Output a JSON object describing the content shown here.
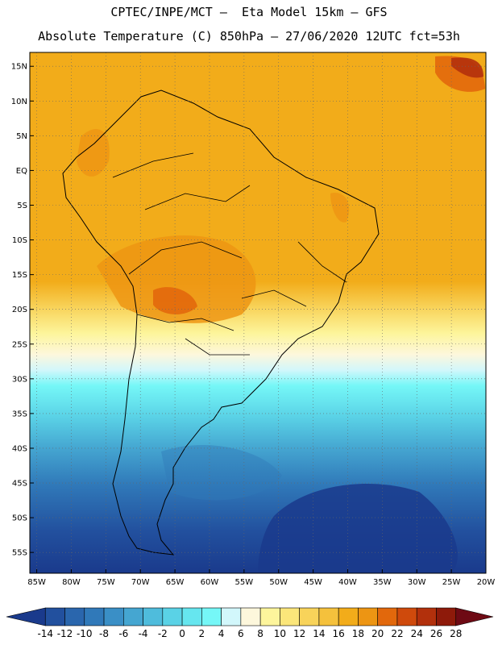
{
  "header": {
    "line1": "CPTEC/INPE/MCT –  Eta Model 15km – GFS",
    "line2": "Absolute Temperature (C) 850hPa – 27/06/2020 12UTC fct=53h"
  },
  "map": {
    "lat_range": [
      -58,
      17
    ],
    "lon_range": [
      -86,
      -20
    ],
    "lat_labels": [
      "15N",
      "10N",
      "5N",
      "EQ",
      "5S",
      "10S",
      "15S",
      "20S",
      "25S",
      "30S",
      "35S",
      "40S",
      "45S",
      "50S",
      "55S"
    ],
    "lat_values": [
      15,
      10,
      5,
      0,
      -5,
      -10,
      -15,
      -20,
      -25,
      -30,
      -35,
      -40,
      -45,
      -50,
      -55
    ],
    "lon_labels": [
      "85W",
      "80W",
      "75W",
      "70W",
      "65W",
      "60W",
      "55W",
      "50W",
      "45W",
      "40W",
      "35W",
      "30W",
      "25W",
      "20W"
    ],
    "lon_values": [
      -85,
      -80,
      -75,
      -70,
      -65,
      -60,
      -55,
      -50,
      -45,
      -40,
      -35,
      -30,
      -25,
      -20
    ]
  },
  "colorbar": {
    "labels": [
      "-14",
      "-12",
      "-10",
      "-8",
      "-6",
      "-4",
      "-2",
      "0",
      "2",
      "4",
      "6",
      "8",
      "10",
      "12",
      "14",
      "16",
      "18",
      "20",
      "22",
      "24",
      "26",
      "28"
    ],
    "colors": [
      "#1a3a8c",
      "#22509e",
      "#2a66ad",
      "#3079b9",
      "#3a8fc6",
      "#45a6d1",
      "#4fbcdc",
      "#5ad2e6",
      "#66e6ef",
      "#75f7f7",
      "#d2f7fb",
      "#fdf7dc",
      "#fdf59c",
      "#fbe67a",
      "#f8d35a",
      "#f5c13c",
      "#f2ac1a",
      "#ed9513",
      "#e2680c",
      "#cf4a0c",
      "#b2300c",
      "#8e1a0a",
      "#6e0a14"
    ]
  }
}
